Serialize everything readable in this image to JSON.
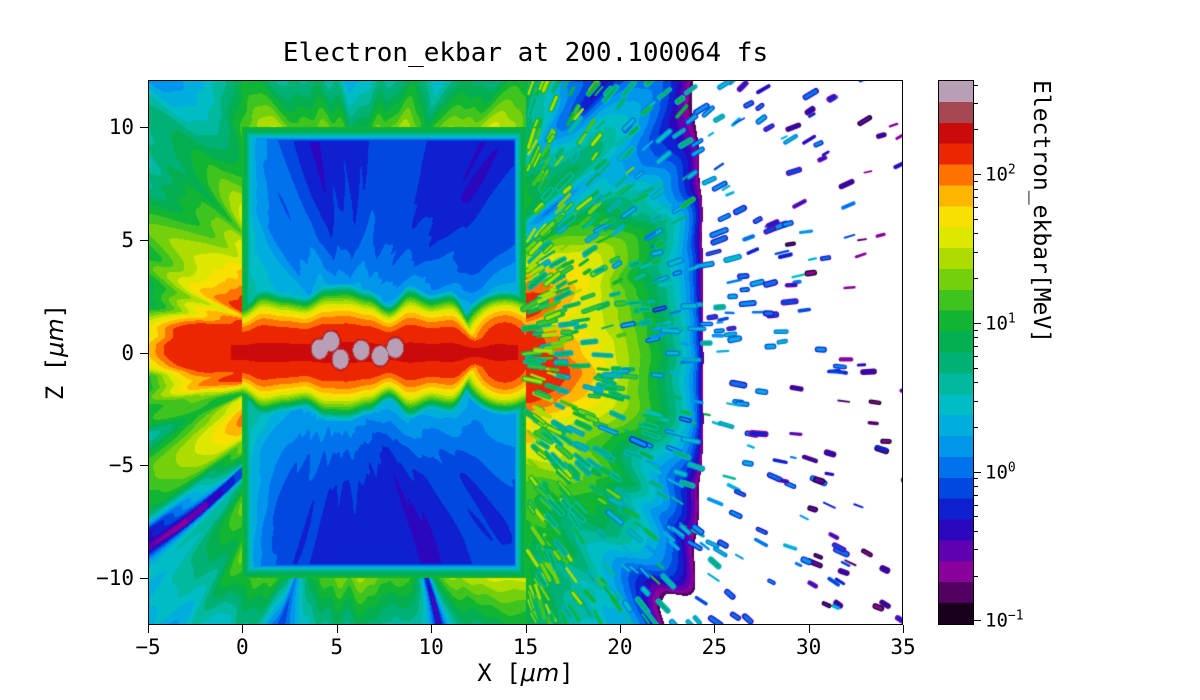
{
  "figure": {
    "title": "Electron_ekbar at 200.100064 fs",
    "xlabel": {
      "pre": "X [",
      "unit": "μm",
      "post": "]"
    },
    "ylabel": {
      "pre": "Z [",
      "unit": "μm",
      "post": "]"
    },
    "background": "#ffffff"
  },
  "axes": {
    "x_ticks": [
      {
        "label": "−5",
        "value": -5
      },
      {
        "label": "0",
        "value": 0
      },
      {
        "label": "5",
        "value": 5
      },
      {
        "label": "10",
        "value": 10
      },
      {
        "label": "15",
        "value": 15
      },
      {
        "label": "20",
        "value": 20
      },
      {
        "label": "25",
        "value": 25
      },
      {
        "label": "30",
        "value": 30
      },
      {
        "label": "35",
        "value": 35
      }
    ],
    "z_ticks": [
      {
        "label": "−10",
        "value": -10
      },
      {
        "label": "−5",
        "value": -5
      },
      {
        "label": "0",
        "value": 0
      },
      {
        "label": "5",
        "value": 5
      },
      {
        "label": "10",
        "value": 10
      }
    ]
  },
  "colorbar": {
    "label": "Electron_ekbar[MeV]",
    "scale": "log10",
    "range_mev": [
      0.093,
      430
    ],
    "levels": 26,
    "ticks": [
      {
        "base": "10",
        "exp": "2",
        "value": 100
      },
      {
        "base": "10",
        "exp": "1",
        "value": 10
      },
      {
        "base": "10",
        "exp": "0",
        "value": 1
      },
      {
        "base": "10",
        "exp": "−1",
        "value": 0.1
      }
    ]
  },
  "chart_data": {
    "type": "heatmap",
    "title": "Electron_ekbar at 200.100064 fs",
    "xlabel": "X [μm]",
    "ylabel": "Z [μm]",
    "x_range": [
      -5,
      35
    ],
    "z_range": [
      -12.1,
      12.1
    ],
    "value_label": "Electron_ekbar[MeV]",
    "value_scale": "log",
    "value_range": [
      0.1,
      400
    ],
    "colormap": {
      "stops": [
        [
          0.0,
          "#000000"
        ],
        [
          0.03,
          "#26002e"
        ],
        [
          0.065,
          "#5c0070"
        ],
        [
          0.1,
          "#8e00a0"
        ],
        [
          0.125,
          "#7000b0"
        ],
        [
          0.155,
          "#3a00b4"
        ],
        [
          0.2,
          "#1414cc"
        ],
        [
          0.25,
          "#0048e0"
        ],
        [
          0.3,
          "#0080f0"
        ],
        [
          0.35,
          "#00a8e8"
        ],
        [
          0.4,
          "#00bcc8"
        ],
        [
          0.45,
          "#00b896"
        ],
        [
          0.5,
          "#00ac60"
        ],
        [
          0.555,
          "#0cb434"
        ],
        [
          0.61,
          "#50c818"
        ],
        [
          0.66,
          "#9cd800"
        ],
        [
          0.705,
          "#d8e800"
        ],
        [
          0.75,
          "#f8e000"
        ],
        [
          0.79,
          "#ffb400"
        ],
        [
          0.828,
          "#ff7000"
        ],
        [
          0.858,
          "#f03000"
        ],
        [
          0.892,
          "#d80000"
        ],
        [
          0.925,
          "#b42020"
        ],
        [
          0.95,
          "#a05868"
        ],
        [
          0.975,
          "#b494ac"
        ],
        [
          1.0,
          "#cac2d2"
        ]
      ]
    },
    "features": {
      "target_rect": {
        "x0": 0,
        "x1": 15,
        "z0": -10,
        "z1": 10,
        "interior_mev": 0.55,
        "edge_mev": 9,
        "left_edge_mev": 2.5,
        "halo_mev": 2.6
      },
      "channel": {
        "half_width_um": 1.45,
        "peak_mev": 165,
        "x_start": -1.9,
        "x_end": 15.8,
        "neck_x": 12.35,
        "end_blob": {
          "x": 13.9,
          "z": 0,
          "radius_um": 1.9,
          "peak_mev": 150
        },
        "hot_spots": [
          [
            4.1,
            0.15
          ],
          [
            5.2,
            -0.3
          ],
          [
            6.3,
            0.1
          ],
          [
            7.3,
            -0.15
          ],
          [
            8.1,
            0.2
          ],
          [
            4.7,
            0.5
          ]
        ],
        "hot_spot_mev": 520,
        "hot_spot_radius_um": 0.5
      },
      "ambient_glow": {
        "near_mev": 200,
        "mid_mev": 55,
        "halo_scale_um": 3.2,
        "far_mev": 7,
        "far_scale_um": 8,
        "outer_mev": 5,
        "outer_scale_um": 12,
        "rect_edge_mev": 24,
        "cutoff_mev": 0.14,
        "max_mev": 140
      },
      "right_fan": {
        "center_x": 14,
        "gauss_mev": 150,
        "gauss_r_um": 2.4,
        "exp_mev": 150,
        "exp_r_um": 2.6,
        "wide_mev": 38,
        "wide_r_um": 5.5,
        "fade_start_x": 19,
        "fade_len_um": 5.5
      },
      "speckles": {
        "count": 1500,
        "seed": 7,
        "x_start": 15.3,
        "x_spread": 21,
        "z_spread": 12.15,
        "energy_lg_at_edge": 1.25,
        "energy_lg_slope": -0.095,
        "energy_lg_jitter": 0.6
      }
    }
  }
}
